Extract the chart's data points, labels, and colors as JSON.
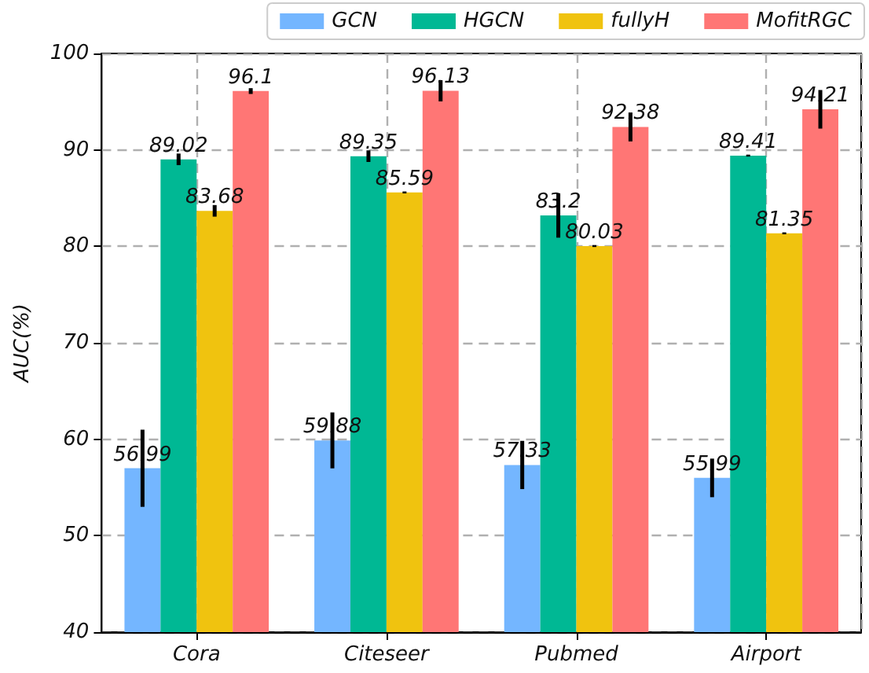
{
  "chart_data": {
    "type": "bar",
    "ylabel": "AUC(%)",
    "categories": [
      "Cora",
      "Citeseer",
      "Pubmed",
      "Airport"
    ],
    "series": [
      {
        "name": "GCN",
        "color": "#74b6ff",
        "values": [
          56.99,
          59.88,
          57.33,
          55.99
        ],
        "errors": [
          4.0,
          2.9,
          2.5,
          2.0
        ]
      },
      {
        "name": "HGCN",
        "color": "#00b894",
        "values": [
          89.02,
          89.35,
          83.2,
          89.41
        ],
        "errors": [
          0.6,
          0.6,
          2.3,
          0.1
        ]
      },
      {
        "name": "fullyH",
        "color": "#f0c30f",
        "values": [
          83.68,
          85.59,
          80.03,
          81.35
        ],
        "errors": [
          0.6,
          0.1,
          0.1,
          0.1
        ]
      },
      {
        "name": "MofitRGC",
        "color": "#ff7675",
        "values": [
          96.1,
          96.13,
          92.38,
          94.21
        ],
        "errors": [
          0.3,
          1.1,
          1.5,
          2.0
        ]
      }
    ],
    "ylim": [
      40,
      100
    ],
    "yticks": [
      40,
      50,
      60,
      70,
      80,
      90,
      100
    ],
    "grid": true,
    "legend": "top right",
    "data_labels": true
  }
}
